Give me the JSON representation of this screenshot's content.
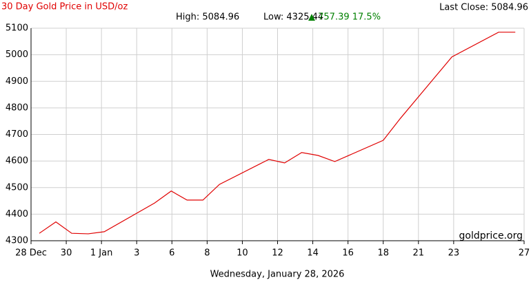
{
  "chart_data": {
    "type": "line",
    "title": "30 Day Gold Price in USD/oz",
    "last_close": "Last Close: 5084.96",
    "high": "High: 5084.96",
    "low": "Low: 4325.44",
    "change": "▲ 757.39 17.5%",
    "date": "Wednesday, January 28, 2026",
    "watermark": "goldprice.org",
    "x": [
      0.47,
      1.41,
      2.31,
      3.25,
      4.16,
      7.02,
      7.96,
      8.86,
      9.76,
      10.7,
      13.5,
      14.4,
      15.37,
      16.3,
      17.25,
      20,
      20.98,
      23.9,
      26.55,
      27.5
    ],
    "series": [
      {
        "color": "#e00000",
        "values": [
          4328,
          4371,
          4328,
          4326,
          4334,
          4442,
          4487,
          4453,
          4453,
          4512,
          4606,
          4593,
          4632,
          4621,
          4598,
          4678,
          4761,
          4992,
          5084.96,
          5084.96
        ]
      }
    ],
    "xlim": [
      0,
      28
    ],
    "xticks": [
      {
        "value": 0,
        "label": "28 Dec"
      },
      {
        "value": 2,
        "label": "30"
      },
      {
        "value": 4,
        "label": "1 Jan"
      },
      {
        "value": 6,
        "label": "3"
      },
      {
        "value": 8,
        "label": "6"
      },
      {
        "value": 10,
        "label": "8"
      },
      {
        "value": 12,
        "label": "10"
      },
      {
        "value": 14,
        "label": "12"
      },
      {
        "value": 16,
        "label": "14"
      },
      {
        "value": 18,
        "label": "16"
      },
      {
        "value": 20,
        "label": "18"
      },
      {
        "value": 22,
        "label": "21"
      },
      {
        "value": 24,
        "label": "23"
      },
      {
        "value": 28,
        "label": "27"
      }
    ],
    "ylim": [
      4300,
      5100
    ],
    "yticks": [
      4300,
      4400,
      4500,
      4600,
      4700,
      4800,
      4900,
      5000,
      5100
    ],
    "grid": true
  }
}
